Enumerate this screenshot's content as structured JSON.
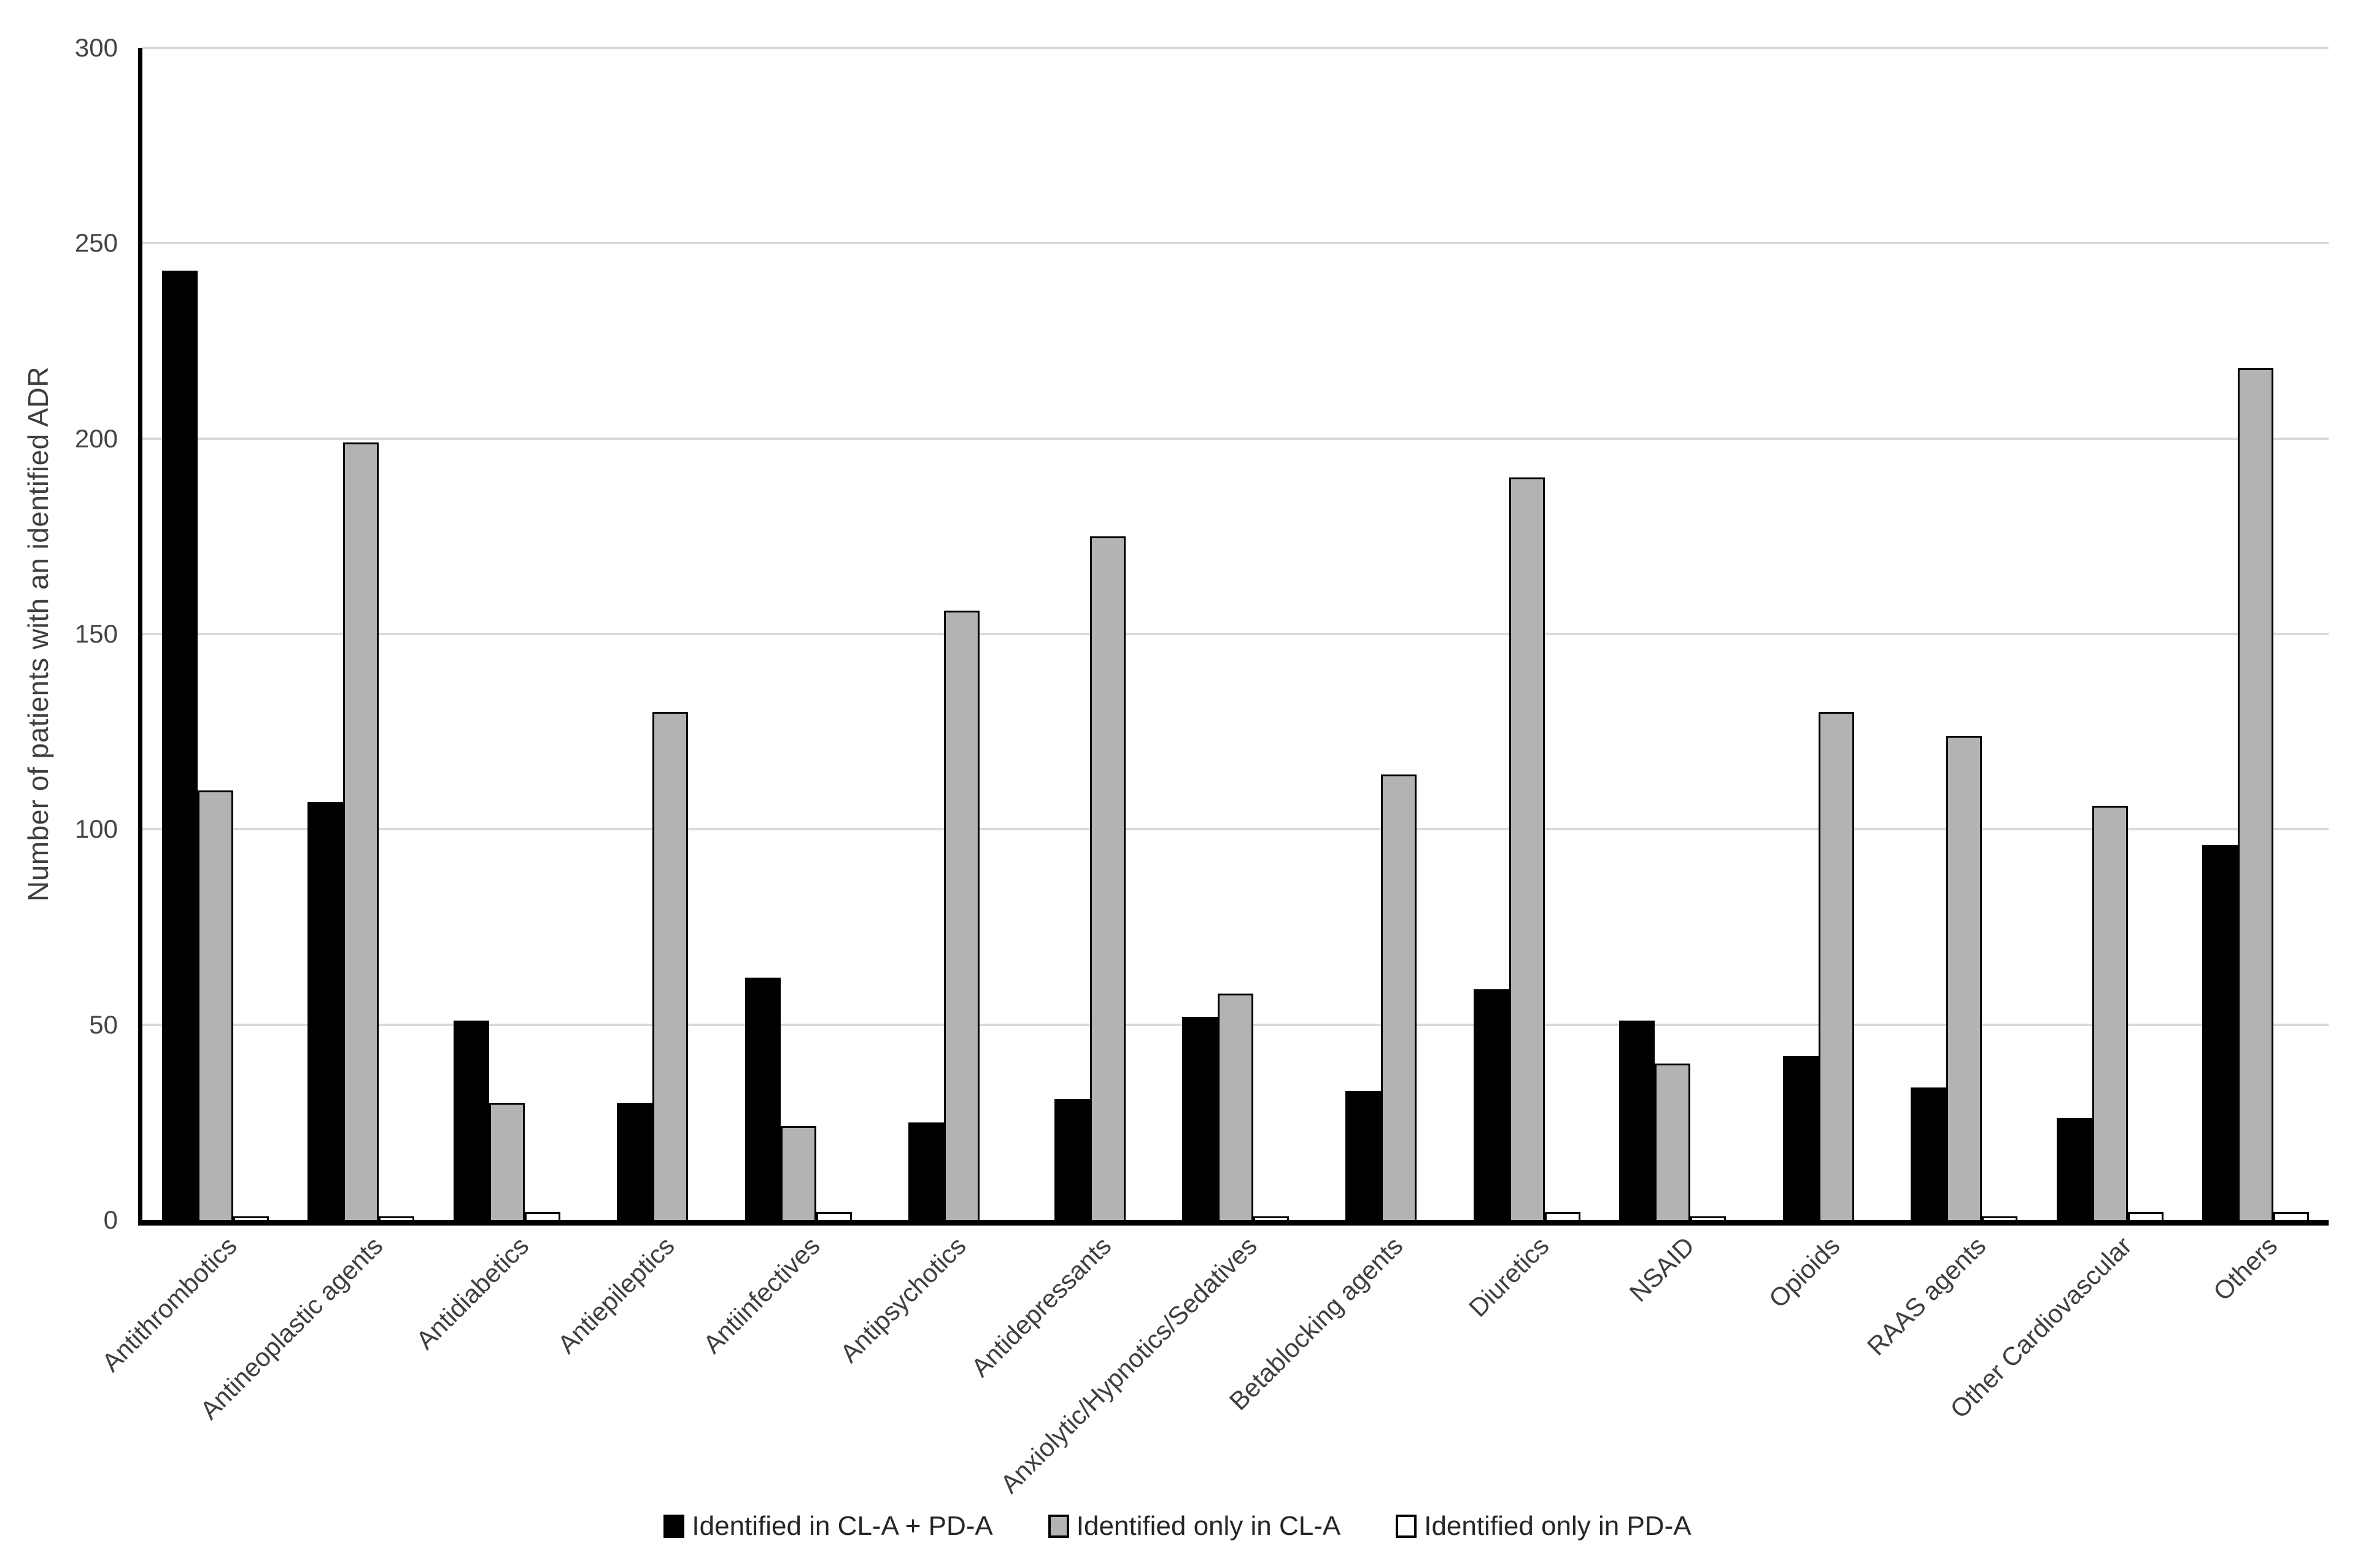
{
  "figure": {
    "background": "#ffffff",
    "axis_color": "#000000",
    "gridline_color": "#d9d9d9",
    "tick_text_color": "#444444",
    "label_text_color": "#3f3f3f",
    "legend_text_color": "#262626"
  },
  "chart_data": {
    "type": "bar",
    "title": "",
    "xlabel": "",
    "ylabel": "Number of patients with an identified ADR",
    "ylim": [
      0,
      300
    ],
    "yticks": [
      0,
      50,
      100,
      150,
      200,
      250,
      300
    ],
    "grid": true,
    "legend_position": "bottom",
    "bar_border_color": "#000000",
    "categories": [
      "Antithrombotics",
      "Antineoplastic agents",
      "Antidiabetics",
      "Antiepileptics",
      "Antiinfectives",
      "Antipsychotics",
      "Antidepressants",
      "Anxiolytic/Hypnotics/Sedatives",
      "Betablocking agents",
      "Diuretics",
      "NSAID",
      "Opioids",
      "RAAS agents",
      "Other Cardiovascular",
      "Others"
    ],
    "series": [
      {
        "name": "Identified in CL-A + PD-A",
        "color": "#000000",
        "values": [
          243,
          107,
          51,
          30,
          62,
          25,
          31,
          52,
          33,
          59,
          51,
          42,
          34,
          26,
          96
        ]
      },
      {
        "name": "Identified only in CL-A",
        "color": "#b3b3b3",
        "values": [
          110,
          199,
          30,
          130,
          24,
          156,
          175,
          58,
          114,
          190,
          40,
          130,
          124,
          106,
          218
        ]
      },
      {
        "name": "Identified only in PD-A",
        "color": "#ffffff",
        "values": [
          1,
          1,
          2,
          0,
          2,
          0,
          0,
          1,
          0,
          2,
          1,
          0,
          1,
          2,
          2
        ]
      }
    ]
  }
}
